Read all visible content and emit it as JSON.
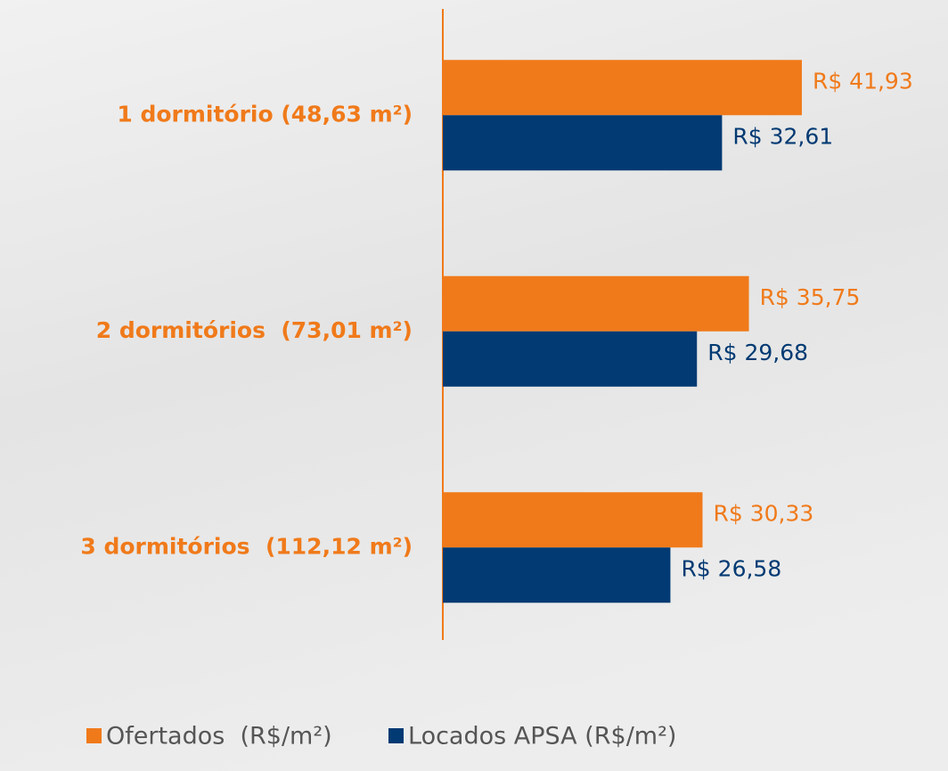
{
  "chart_data": {
    "type": "barh",
    "categories": [
      "1 dormitório (48,63 m²)",
      "2 dormitórios  (73,01 m²)",
      "3 dormitórios  (112,12 m²)"
    ],
    "series": [
      {
        "name": "Ofertados  (R$/m²)",
        "color": "#f07a1a",
        "values": [
          41.93,
          35.75,
          30.33
        ],
        "value_labels": [
          "R$ 41,93",
          "R$ 35,75",
          "R$ 30,33"
        ]
      },
      {
        "name": "Locados APSA (R$/m²)",
        "color": "#023a73",
        "values": [
          32.61,
          29.68,
          26.58
        ],
        "value_labels": [
          "R$ 32,61",
          "R$ 29,68",
          "R$ 26,58"
        ]
      }
    ],
    "xlim": [
      0,
      59
    ]
  }
}
